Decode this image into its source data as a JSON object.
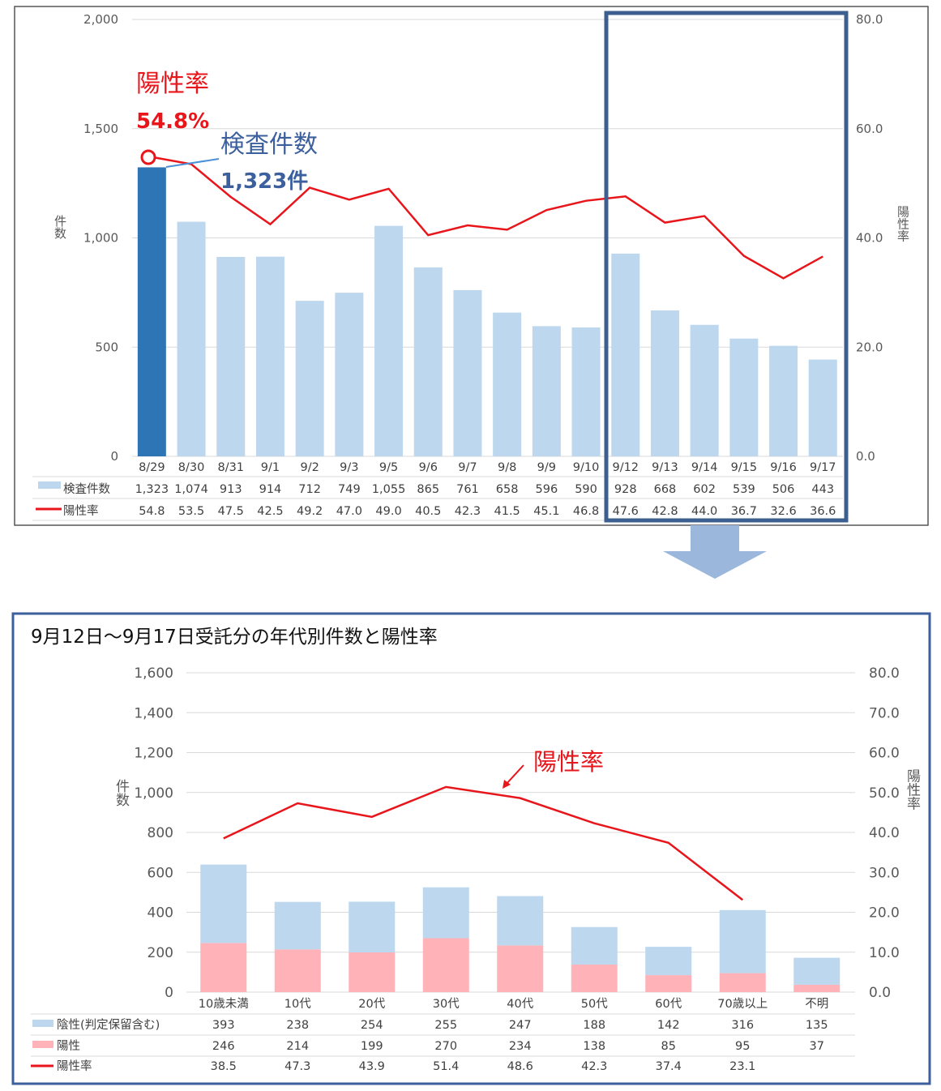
{
  "chart_data": [
    {
      "type": "bar",
      "categories": [
        "8/29",
        "8/30",
        "8/31",
        "9/1",
        "9/2",
        "9/3",
        "9/5",
        "9/6",
        "9/7",
        "9/8",
        "9/9",
        "9/10",
        "9/12",
        "9/13",
        "9/14",
        "9/15",
        "9/16",
        "9/17"
      ],
      "series": [
        {
          "name": "検査件数",
          "kind": "bar",
          "axis": "left",
          "values": [
            1323,
            1074,
            913,
            914,
            712,
            749,
            1055,
            865,
            761,
            658,
            596,
            590,
            928,
            668,
            602,
            539,
            506,
            443
          ],
          "display": [
            "1,323",
            "1,074",
            "913",
            "914",
            "712",
            "749",
            "1,055",
            "865",
            "761",
            "658",
            "596",
            "590",
            "928",
            "668",
            "602",
            "539",
            "506",
            "443"
          ]
        },
        {
          "name": "陽性率",
          "kind": "line",
          "axis": "right",
          "values": [
            54.8,
            53.5,
            47.5,
            42.5,
            49.2,
            47.0,
            49.0,
            40.5,
            42.3,
            41.5,
            45.1,
            46.8,
            47.6,
            42.8,
            44.0,
            36.7,
            32.6,
            36.6
          ],
          "display": [
            "54.8",
            "53.5",
            "47.5",
            "42.5",
            "49.2",
            "47.0",
            "49.0",
            "40.5",
            "42.3",
            "41.5",
            "45.1",
            "46.8",
            "47.6",
            "42.8",
            "44.0",
            "36.7",
            "32.6",
            "36.6"
          ]
        }
      ],
      "ylabel": "件数",
      "y2label": "陽性率",
      "ylim": [
        0,
        2000
      ],
      "y2lim": [
        0,
        80
      ],
      "yticks": [
        "0",
        "500",
        "1,000",
        "1,500",
        "2,000"
      ],
      "y2ticks": [
        "0.0",
        "20.0",
        "40.0",
        "60.0",
        "80.0"
      ],
      "highlight_index": 0,
      "annotations": {
        "rate_label": "陽性率",
        "rate_value": "54.8%",
        "count_label": "検査件数",
        "count_value": "1,323件"
      },
      "colors": {
        "bar": "#bdd7ee",
        "bar_highlight": "#2e75b6",
        "line": "#e8151b",
        "box": "#3c5f8f"
      }
    },
    {
      "type": "bar",
      "title": "9月12日〜9月17日受託分の年代別件数と陽性率",
      "stacked": true,
      "categories": [
        "10歳未満",
        "10代",
        "20代",
        "30代",
        "40代",
        "50代",
        "60代",
        "70歳以上",
        "不明"
      ],
      "series": [
        {
          "name": "陽性",
          "kind": "bar",
          "axis": "left",
          "values": [
            246,
            214,
            199,
            270,
            234,
            138,
            85,
            95,
            37
          ]
        },
        {
          "name": "陰性(判定保留含む)",
          "kind": "bar",
          "axis": "left",
          "values": [
            393,
            238,
            254,
            255,
            247,
            188,
            142,
            316,
            135
          ]
        },
        {
          "name": "陽性率",
          "kind": "line",
          "axis": "right",
          "values": [
            38.5,
            47.3,
            43.9,
            51.4,
            48.6,
            42.3,
            37.4,
            23.1,
            null
          ],
          "display": [
            "38.5",
            "47.3",
            "43.9",
            "51.4",
            "48.6",
            "42.3",
            "37.4",
            "23.1",
            ""
          ]
        }
      ],
      "ylabel": "件数",
      "y2label": "陽性率",
      "ylim": [
        0,
        1600
      ],
      "y2lim": [
        0,
        80
      ],
      "yticks": [
        "0",
        "200",
        "400",
        "600",
        "800",
        "1,000",
        "1,200",
        "1,400",
        "1,600"
      ],
      "y2ticks": [
        "0.0",
        "10.0",
        "20.0",
        "30.0",
        "40.0",
        "50.0",
        "60.0",
        "70.0",
        "80.0"
      ],
      "annotations": {
        "rate_label": "陽性率"
      },
      "colors": {
        "negative": "#bdd7ee",
        "positive": "#ffb3b8",
        "line": "#e8151b",
        "frame": "#3c5f9e"
      }
    }
  ]
}
